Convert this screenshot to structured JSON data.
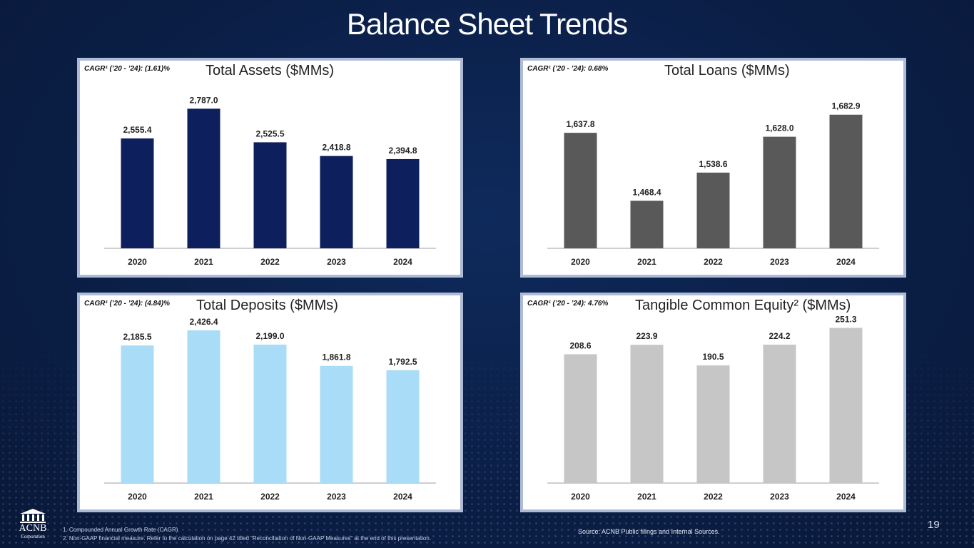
{
  "title": "Balance Sheet Trends",
  "chart_data": [
    {
      "id": "assets",
      "type": "bar",
      "title": "Total Assets ($MMs)",
      "cagr_label": "CAGR¹ (’20 - ’24): (1.61)%",
      "categories": [
        "2020",
        "2021",
        "2022",
        "2023",
        "2024"
      ],
      "values": [
        2555.4,
        2787.0,
        2525.5,
        2418.8,
        2394.8
      ],
      "value_labels": [
        "2,555.4",
        "2,787.0",
        "2,525.5",
        "2,418.8",
        "2,394.8"
      ],
      "ylim": [
        1700,
        2950
      ],
      "color": "#0d1f5c",
      "xlabel": "",
      "ylabel": ""
    },
    {
      "id": "loans",
      "type": "bar",
      "title": "Total Loans ($MMs)",
      "cagr_label": "CAGR¹ (’20 - ’24): 0.68%",
      "categories": [
        "2020",
        "2021",
        "2022",
        "2023",
        "2024"
      ],
      "values": [
        1637.8,
        1468.4,
        1538.6,
        1628.0,
        1682.9
      ],
      "value_labels": [
        "1,637.8",
        "1,468.4",
        "1,538.6",
        "1,628.0",
        "1,682.9"
      ],
      "ylim": [
        1350,
        1750
      ],
      "color": "#595959",
      "xlabel": "",
      "ylabel": ""
    },
    {
      "id": "deposits",
      "type": "bar",
      "title": "Total Deposits ($MMs)",
      "cagr_label": "CAGR¹ (’20 - ’24):  (4.84)%",
      "categories": [
        "2020",
        "2021",
        "2022",
        "2023",
        "2024"
      ],
      "values": [
        2185.5,
        2426.4,
        2199.0,
        1861.8,
        1792.5
      ],
      "value_labels": [
        "2,185.5",
        "2,426.4",
        "2,199.0",
        "1,861.8",
        "1,792.5"
      ],
      "ylim": [
        0,
        2550
      ],
      "color": "#a9dcf7",
      "xlabel": "",
      "ylabel": ""
    },
    {
      "id": "equity",
      "type": "bar",
      "title": "Tangible Common Equity² ($MMs)",
      "cagr_label": "CAGR¹ (’20 - ’24):  4.76%",
      "categories": [
        "2020",
        "2021",
        "2022",
        "2023",
        "2024"
      ],
      "values": [
        208.6,
        223.9,
        190.5,
        224.2,
        251.3
      ],
      "value_labels": [
        "208.6",
        "223.9",
        "190.5",
        "224.2",
        "251.3"
      ],
      "ylim": [
        0,
        260
      ],
      "color": "#c6c6c6",
      "xlabel": "",
      "ylabel": ""
    }
  ],
  "footnotes": {
    "line1": "1. Compounded Annual Growth Rate (CAGR).",
    "line2": "2. Non-GAAP financial measure.  Refer to the calculation on page 42 titled “Reconciliation of Non-GAAP Measures” at the end of this presentation."
  },
  "source": "Source: ACNB Public filings and Internal Sources.",
  "page_number": "19",
  "logo": {
    "name": "ACNB",
    "sub": "Corporation"
  }
}
